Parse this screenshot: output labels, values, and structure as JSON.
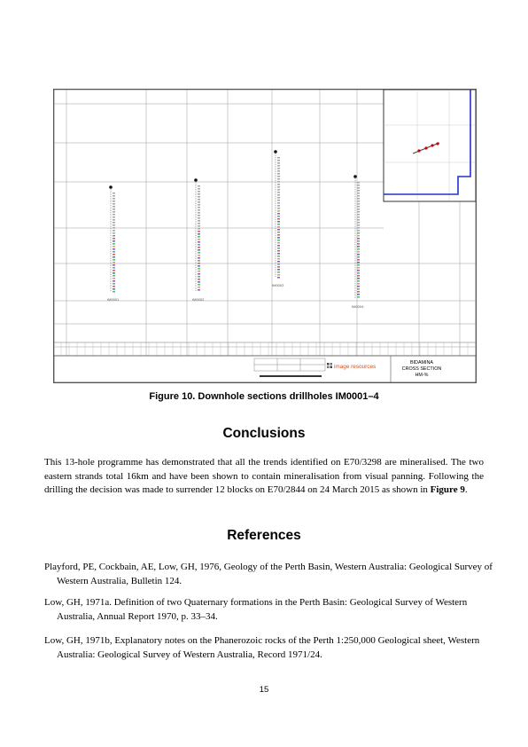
{
  "figure": {
    "logo_text": "image resources",
    "title_lines": [
      "BIDAMINA",
      "CROSS SECTION",
      "HM-%"
    ],
    "hole_labels": [
      "IM0001",
      "IM0002",
      "IM0003",
      "IM0004"
    ],
    "accent_color": "#2233cc",
    "logo_color": "#d94f1e"
  },
  "caption": "Figure 10. Downhole sections drillholes IM0001–4",
  "conclusions": {
    "heading": "Conclusions",
    "body_start": "This 13-hole programme has demonstrated that all the trends identified on E70/3298 are mineralised. The two eastern strands total 16km and have been shown to contain mineralisation from visual panning. Following the drilling the decision was made to surrender 12 blocks on E70/2844 on 24 March 2015 as shown in ",
    "body_ref": "Figure 9",
    "body_end": "."
  },
  "references": {
    "heading": "References",
    "items": [
      "Playford, PE, Cockbain, AE, Low, GH, 1976, Geology of the Perth Basin, Western Australia: Geological Survey of Western Australia, Bulletin 124.",
      "Low, GH, 1971a. Definition of two Quaternary formations in the Perth Basin: Geological Survey of Western Australia, Annual Report 1970, p. 33–34.",
      "Low, GH, 1971b, Explanatory notes on the Phanerozoic rocks of the Perth 1:250,000 Geological sheet, Western Australia: Geological Survey of Western Australia, Record 1971/24."
    ]
  },
  "page_number": "15"
}
